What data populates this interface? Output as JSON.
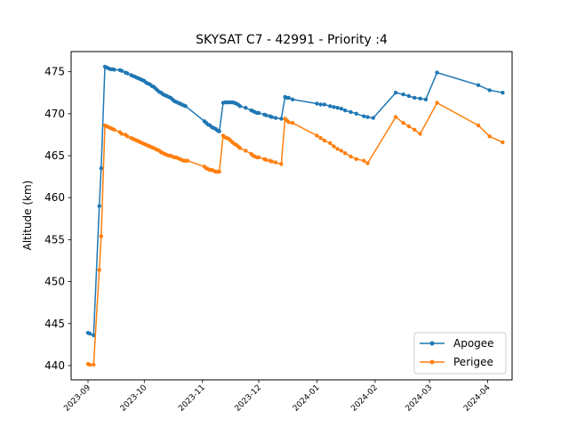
{
  "chart_data": {
    "type": "line",
    "title": "SKYSAT C7 - 42991 - Priority :4",
    "xlabel": "",
    "ylabel": "Altitude (km)",
    "x_type": "date",
    "xlim": [
      "2023-08-23",
      "2024-04-14"
    ],
    "ylim": [
      438.3,
      477.4
    ],
    "x_ticks": [
      "2023-09",
      "2023-10",
      "2023-11",
      "2023-12",
      "2024-01",
      "2024-02",
      "2024-03",
      "2024-04"
    ],
    "y_ticks": [
      440,
      445,
      450,
      455,
      460,
      465,
      470,
      475
    ],
    "grid": false,
    "legend_position": "lower right",
    "colors": {
      "Apogee": "#1f77b4",
      "Perigee": "#ff7f0e"
    },
    "series": [
      {
        "name": "Apogee",
        "points": [
          [
            "2023-09-01",
            443.9
          ],
          [
            "2023-09-02",
            443.8
          ],
          [
            "2023-09-04",
            443.6
          ],
          [
            "2023-09-07",
            459.0
          ],
          [
            "2023-09-08",
            463.5
          ],
          [
            "2023-09-10",
            475.6
          ],
          [
            "2023-09-11",
            475.5
          ],
          [
            "2023-09-12",
            475.4
          ],
          [
            "2023-09-13",
            475.3
          ],
          [
            "2023-09-14",
            475.3
          ],
          [
            "2023-09-15",
            475.25
          ],
          [
            "2023-09-18",
            475.2
          ],
          [
            "2023-09-19",
            475.1
          ],
          [
            "2023-09-21",
            474.9
          ],
          [
            "2023-09-22",
            474.8
          ],
          [
            "2023-09-24",
            474.6
          ],
          [
            "2023-09-25",
            474.5
          ],
          [
            "2023-09-26",
            474.4
          ],
          [
            "2023-09-27",
            474.3
          ],
          [
            "2023-09-28",
            474.2
          ],
          [
            "2023-09-29",
            474.1
          ],
          [
            "2023-09-30",
            474.0
          ],
          [
            "2023-10-01",
            473.9
          ],
          [
            "2023-10-02",
            473.7
          ],
          [
            "2023-10-03",
            473.6
          ],
          [
            "2023-10-04",
            473.5
          ],
          [
            "2023-10-05",
            473.3
          ],
          [
            "2023-10-06",
            473.2
          ],
          [
            "2023-10-07",
            473.0
          ],
          [
            "2023-10-08",
            472.8
          ],
          [
            "2023-10-09",
            472.6
          ],
          [
            "2023-10-10",
            472.5
          ],
          [
            "2023-10-11",
            472.3
          ],
          [
            "2023-10-12",
            472.2
          ],
          [
            "2023-10-13",
            472.1
          ],
          [
            "2023-10-14",
            472.0
          ],
          [
            "2023-10-15",
            471.9
          ],
          [
            "2023-10-16",
            471.7
          ],
          [
            "2023-10-17",
            471.5
          ],
          [
            "2023-10-18",
            471.4
          ],
          [
            "2023-10-19",
            471.3
          ],
          [
            "2023-10-20",
            471.2
          ],
          [
            "2023-10-21",
            471.1
          ],
          [
            "2023-10-22",
            471.0
          ],
          [
            "2023-10-23",
            470.9
          ],
          [
            "2023-11-02",
            469.1
          ],
          [
            "2023-11-03",
            468.9
          ],
          [
            "2023-11-04",
            468.7
          ],
          [
            "2023-11-05",
            468.6
          ],
          [
            "2023-11-06",
            468.4
          ],
          [
            "2023-11-07",
            468.3
          ],
          [
            "2023-11-08",
            468.2
          ],
          [
            "2023-11-09",
            468.0
          ],
          [
            "2023-11-10",
            467.9
          ],
          [
            "2023-11-12",
            471.3
          ],
          [
            "2023-11-13",
            471.35
          ],
          [
            "2023-11-14",
            471.35
          ],
          [
            "2023-11-15",
            471.35
          ],
          [
            "2023-11-16",
            471.35
          ],
          [
            "2023-11-17",
            471.35
          ],
          [
            "2023-11-18",
            471.3
          ],
          [
            "2023-11-19",
            471.2
          ],
          [
            "2023-11-20",
            471.1
          ],
          [
            "2023-11-21",
            470.9
          ],
          [
            "2023-11-24",
            470.7
          ],
          [
            "2023-11-27",
            470.4
          ],
          [
            "2023-11-28",
            470.3
          ],
          [
            "2023-11-29",
            470.2
          ],
          [
            "2023-11-30",
            470.1
          ],
          [
            "2023-12-01",
            470.1
          ],
          [
            "2023-12-04",
            469.9
          ],
          [
            "2023-12-05",
            469.8
          ],
          [
            "2023-12-07",
            469.7
          ],
          [
            "2023-12-08",
            469.6
          ],
          [
            "2023-12-10",
            469.5
          ],
          [
            "2023-12-13",
            469.4
          ],
          [
            "2023-12-15",
            472.0
          ],
          [
            "2023-12-16",
            471.9
          ],
          [
            "2023-12-17",
            471.9
          ],
          [
            "2023-12-19",
            471.7
          ],
          [
            "2024-01-01",
            471.2
          ],
          [
            "2024-01-03",
            471.1
          ],
          [
            "2024-01-05",
            471.1
          ],
          [
            "2024-01-08",
            470.9
          ],
          [
            "2024-01-10",
            470.8
          ],
          [
            "2024-01-12",
            470.7
          ],
          [
            "2024-01-14",
            470.6
          ],
          [
            "2024-01-16",
            470.4
          ],
          [
            "2024-01-19",
            470.2
          ],
          [
            "2024-01-22",
            470.0
          ],
          [
            "2024-01-26",
            469.7
          ],
          [
            "2024-01-28",
            469.6
          ],
          [
            "2024-01-31",
            469.5
          ],
          [
            "2024-02-12",
            472.5
          ],
          [
            "2024-02-16",
            472.3
          ],
          [
            "2024-02-19",
            472.1
          ],
          [
            "2024-02-22",
            471.9
          ],
          [
            "2024-02-25",
            471.8
          ],
          [
            "2024-02-28",
            471.7
          ],
          [
            "2024-03-05",
            474.9
          ],
          [
            "2024-03-27",
            473.4
          ],
          [
            "2024-04-02",
            472.8
          ],
          [
            "2024-04-09",
            472.5
          ]
        ]
      },
      {
        "name": "Perigee",
        "points": [
          [
            "2023-09-01",
            440.2
          ],
          [
            "2023-09-02",
            440.1
          ],
          [
            "2023-09-04",
            440.1
          ],
          [
            "2023-09-07",
            451.4
          ],
          [
            "2023-09-08",
            455.4
          ],
          [
            "2023-09-10",
            468.6
          ],
          [
            "2023-09-11",
            468.5
          ],
          [
            "2023-09-12",
            468.4
          ],
          [
            "2023-09-13",
            468.3
          ],
          [
            "2023-09-14",
            468.2
          ],
          [
            "2023-09-15",
            468.1
          ],
          [
            "2023-09-18",
            467.8
          ],
          [
            "2023-09-19",
            467.6
          ],
          [
            "2023-09-21",
            467.5
          ],
          [
            "2023-09-22",
            467.3
          ],
          [
            "2023-09-24",
            467.1
          ],
          [
            "2023-09-25",
            467.0
          ],
          [
            "2023-09-26",
            466.9
          ],
          [
            "2023-09-27",
            466.8
          ],
          [
            "2023-09-28",
            466.7
          ],
          [
            "2023-09-29",
            466.6
          ],
          [
            "2023-09-30",
            466.5
          ],
          [
            "2023-10-01",
            466.4
          ],
          [
            "2023-10-02",
            466.3
          ],
          [
            "2023-10-03",
            466.2
          ],
          [
            "2023-10-04",
            466.1
          ],
          [
            "2023-10-05",
            466.0
          ],
          [
            "2023-10-06",
            465.9
          ],
          [
            "2023-10-07",
            465.8
          ],
          [
            "2023-10-08",
            465.7
          ],
          [
            "2023-10-09",
            465.6
          ],
          [
            "2023-10-10",
            465.4
          ],
          [
            "2023-10-11",
            465.3
          ],
          [
            "2023-10-12",
            465.2
          ],
          [
            "2023-10-13",
            465.1
          ],
          [
            "2023-10-14",
            465.0
          ],
          [
            "2023-10-15",
            465.0
          ],
          [
            "2023-10-16",
            464.9
          ],
          [
            "2023-10-17",
            464.8
          ],
          [
            "2023-10-18",
            464.8
          ],
          [
            "2023-10-19",
            464.7
          ],
          [
            "2023-10-20",
            464.6
          ],
          [
            "2023-10-21",
            464.5
          ],
          [
            "2023-10-22",
            464.4
          ],
          [
            "2023-10-23",
            464.4
          ],
          [
            "2023-10-24",
            464.4
          ],
          [
            "2023-11-02",
            463.7
          ],
          [
            "2023-11-03",
            463.5
          ],
          [
            "2023-11-04",
            463.4
          ],
          [
            "2023-11-05",
            463.3
          ],
          [
            "2023-11-06",
            463.3
          ],
          [
            "2023-11-07",
            463.2
          ],
          [
            "2023-11-08",
            463.1
          ],
          [
            "2023-11-09",
            463.1
          ],
          [
            "2023-11-10",
            463.1
          ],
          [
            "2023-11-12",
            467.4
          ],
          [
            "2023-11-13",
            467.2
          ],
          [
            "2023-11-14",
            467.1
          ],
          [
            "2023-11-15",
            467.0
          ],
          [
            "2023-11-16",
            466.8
          ],
          [
            "2023-11-17",
            466.6
          ],
          [
            "2023-11-18",
            466.4
          ],
          [
            "2023-11-19",
            466.3
          ],
          [
            "2023-11-20",
            466.1
          ],
          [
            "2023-11-21",
            465.9
          ],
          [
            "2023-11-24",
            465.6
          ],
          [
            "2023-11-27",
            465.2
          ],
          [
            "2023-11-28",
            465.0
          ],
          [
            "2023-11-29",
            464.9
          ],
          [
            "2023-11-30",
            464.8
          ],
          [
            "2023-12-01",
            464.8
          ],
          [
            "2023-12-04",
            464.6
          ],
          [
            "2023-12-05",
            464.5
          ],
          [
            "2023-12-07",
            464.4
          ],
          [
            "2023-12-08",
            464.3
          ],
          [
            "2023-12-10",
            464.2
          ],
          [
            "2023-12-13",
            464.0
          ],
          [
            "2023-12-15",
            469.4
          ],
          [
            "2023-12-16",
            469.2
          ],
          [
            "2023-12-17",
            469.0
          ],
          [
            "2023-12-19",
            468.9
          ],
          [
            "2024-01-01",
            467.4
          ],
          [
            "2024-01-03",
            467.1
          ],
          [
            "2024-01-05",
            466.8
          ],
          [
            "2024-01-08",
            466.5
          ],
          [
            "2024-01-10",
            466.1
          ],
          [
            "2024-01-12",
            465.8
          ],
          [
            "2024-01-14",
            465.6
          ],
          [
            "2024-01-16",
            465.3
          ],
          [
            "2024-01-19",
            464.9
          ],
          [
            "2024-01-22",
            464.6
          ],
          [
            "2024-01-26",
            464.4
          ],
          [
            "2024-01-28",
            464.1
          ],
          [
            "2024-02-12",
            469.6
          ],
          [
            "2024-02-16",
            468.9
          ],
          [
            "2024-02-19",
            468.5
          ],
          [
            "2024-02-22",
            468.1
          ],
          [
            "2024-02-25",
            467.6
          ],
          [
            "2024-03-05",
            471.3
          ],
          [
            "2024-03-27",
            468.6
          ],
          [
            "2024-04-02",
            467.3
          ],
          [
            "2024-04-09",
            466.6
          ]
        ]
      }
    ]
  }
}
